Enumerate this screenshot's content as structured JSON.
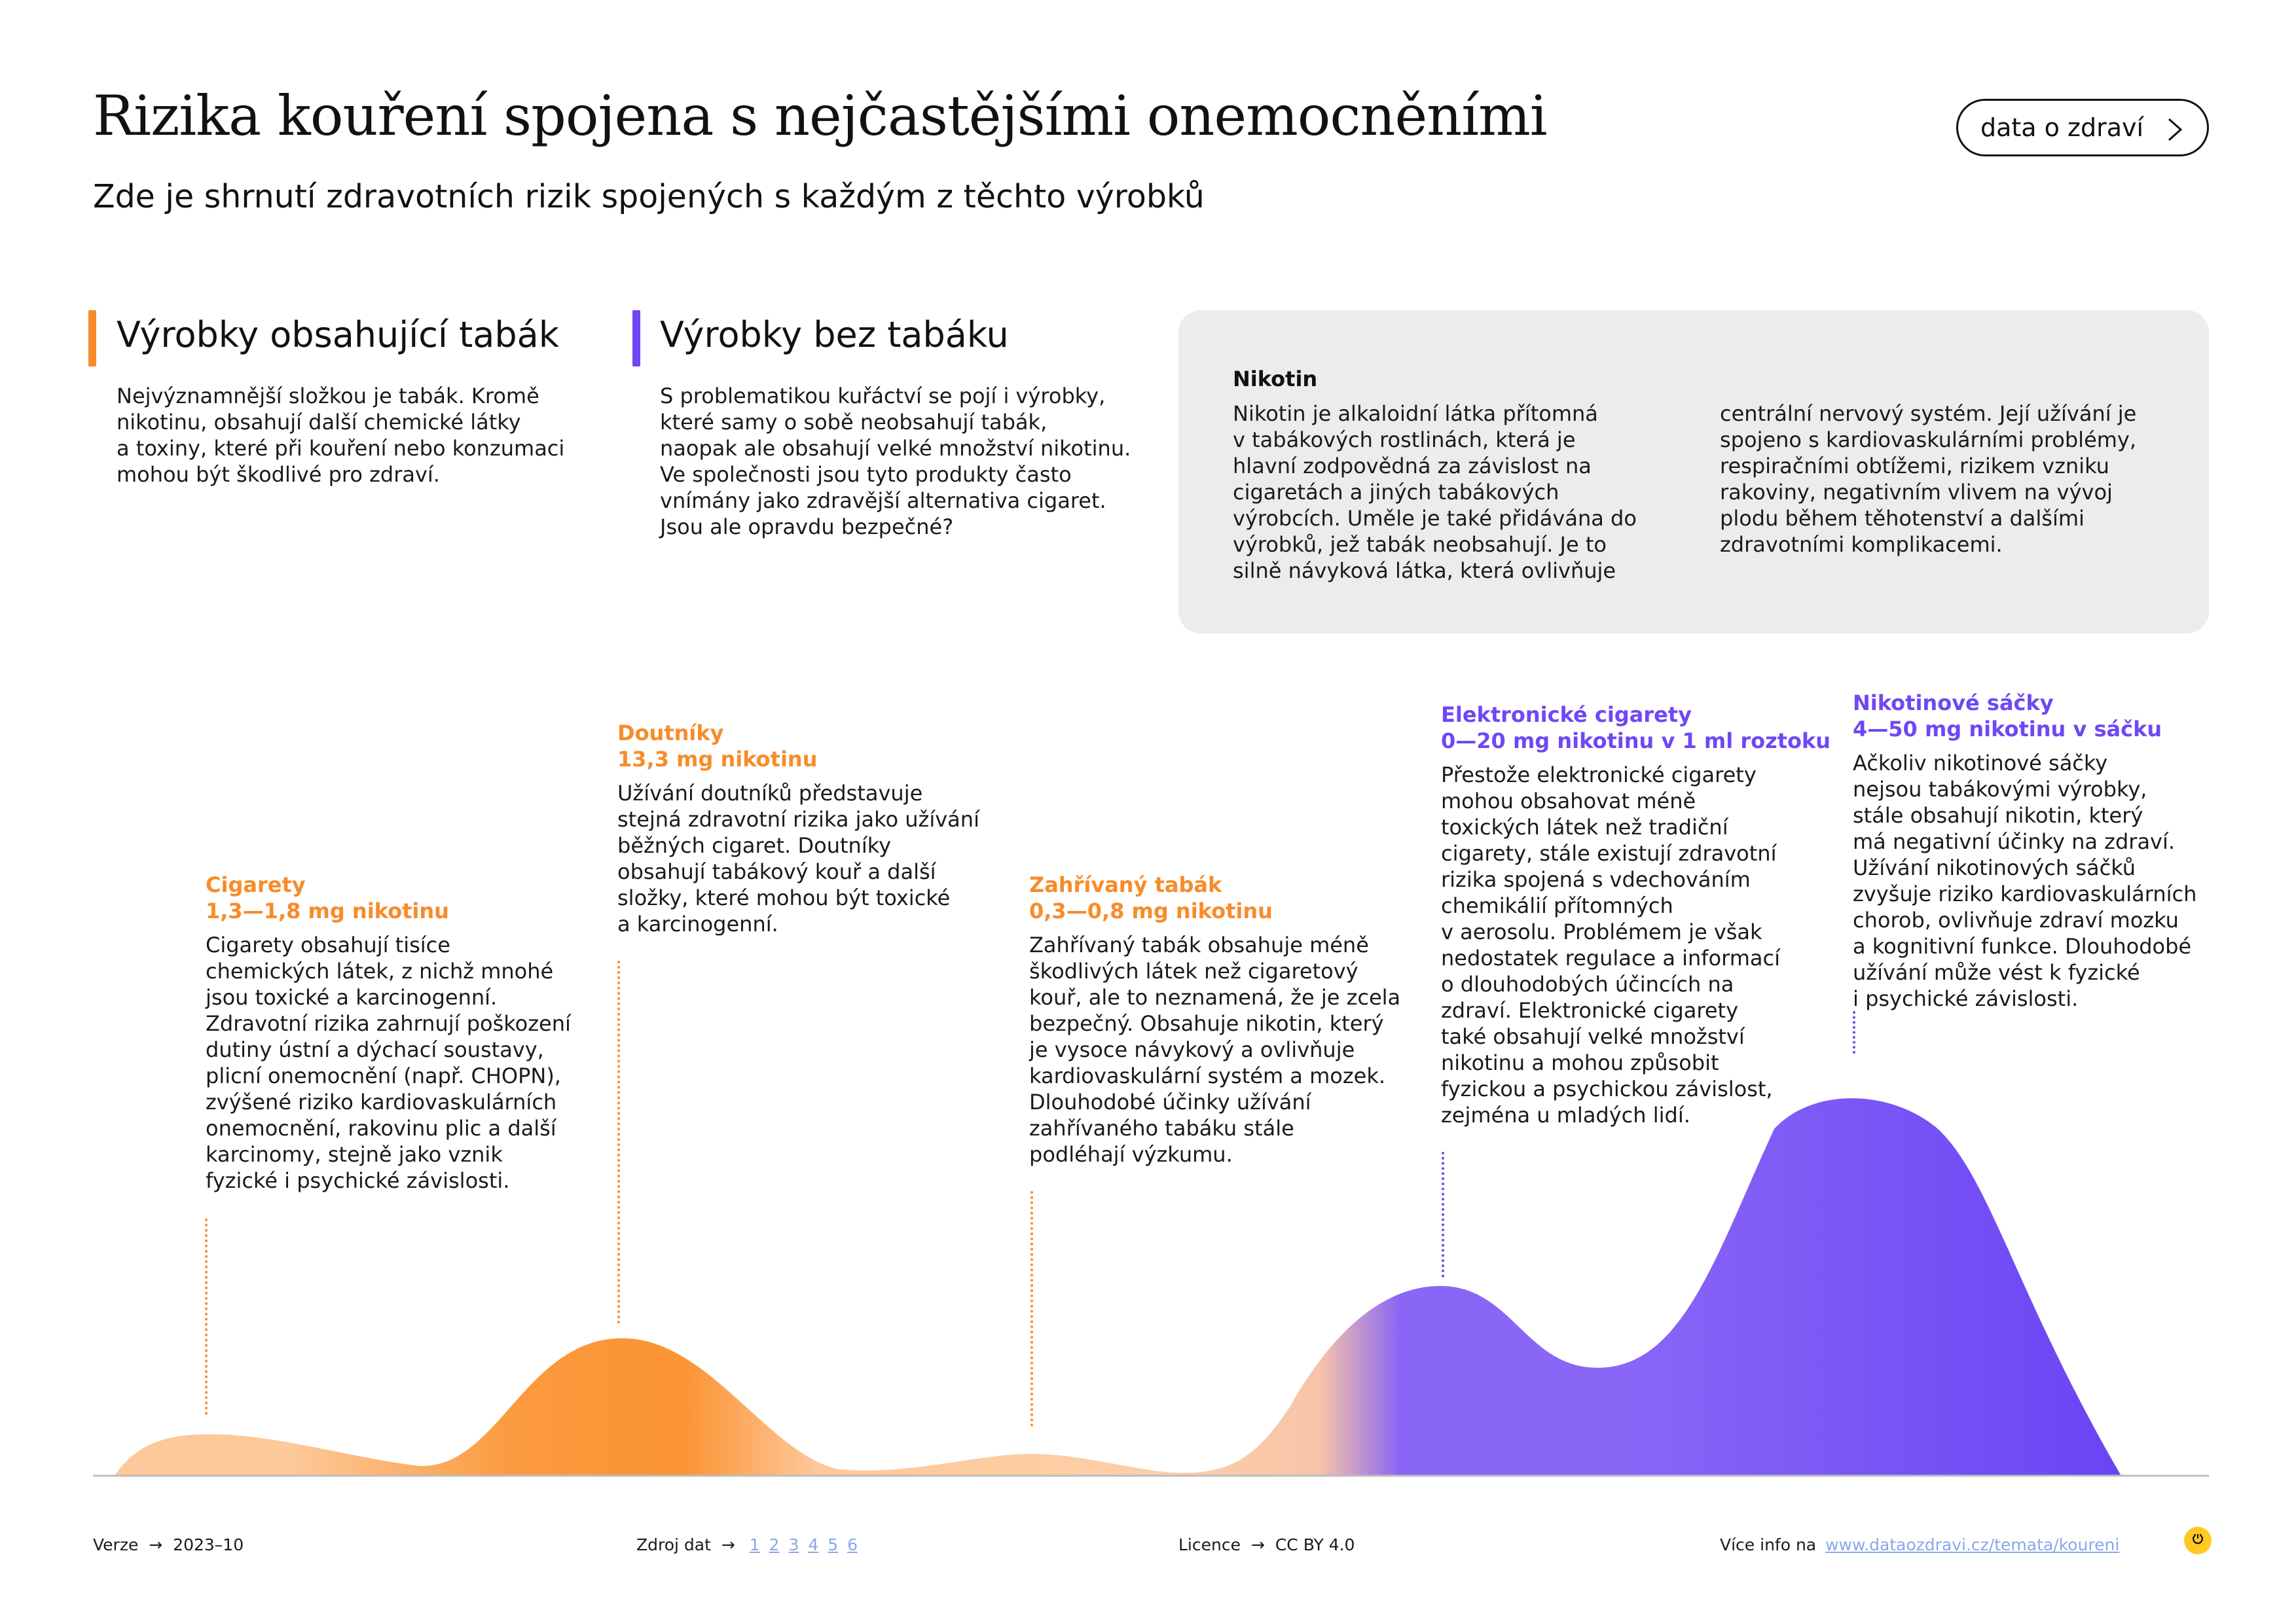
{
  "header": {
    "title": "Rizika kouření spojena s nejčastějšími onemocněními",
    "subtitle": "Zde je shrnutí zdravotních rizik spojených s každým z těchto výrobků",
    "cta_label": "data o zdraví"
  },
  "sections": {
    "tobacco": {
      "title": "Výrobky obsahující tabák",
      "color": "#f78c2a",
      "lines": [
        "Nejvýznamnější složkou je tabák. Kromě",
        "nikotinu, obsahují další chemické látky",
        "a toxiny, které při kouření nebo konzumaci",
        "mohou být škodlivé pro zdraví."
      ]
    },
    "no_tobacco": {
      "title": "Výrobky bez tabáku",
      "color": "#6f48f4",
      "lines": [
        "S problematikou kuřáctví se pojí i výrobky,",
        "které samy o sobě neobsahují tabák,",
        "naopak ale obsahují velké množství nikotinu.",
        "Ve společnosti jsou tyto produkty často",
        "vnímány jako zdravější alternativa cigaret.",
        "Jsou ale opravdu bezpečné?"
      ]
    },
    "nicotine": {
      "title": "Nikotin",
      "col1": [
        "Nikotin je alkaloidní látka přítomná",
        "v tabákových rostlinách, která je",
        "hlavní zodpovědná za závislost na",
        "cigaretách a jiných tabákových",
        "výrobcích. Uměle je také přidávána do",
        "výrobků, jež tabák neobsahují.  Je to",
        "silně návyková látka, která ovlivňuje"
      ],
      "col2": [
        "centrální nervový systém. Její užívání je",
        "spojeno s kardiovaskulárními problémy,",
        "respiračními obtížemi, rizikem vzniku",
        "rakoviny, negativním vlivem na vývoj",
        "plodu během těhotenství a dalšími",
        "zdravotními komplikacemi."
      ]
    }
  },
  "products": [
    {
      "name": "Cigarety",
      "nicotine": "1,3—1,8 mg nikotinu",
      "group": "tabák",
      "lines": [
        "Cigarety obsahují tisíce",
        "chemických látek, z nichž mnohé",
        "jsou toxické a karcinogenní.",
        "Zdravotní rizika zahrnují poškození",
        "dutiny ústní a dýchací soustavy,",
        "plicní onemocnění (např. CHOPN),",
        "zvýšené riziko kardiovaskulárních",
        "onemocnění, rakovinu plic a další",
        "karcinomy, stejně jako vznik",
        "fyzické i psychické závislosti."
      ]
    },
    {
      "name": "Doutníky",
      "nicotine": "13,3 mg nikotinu",
      "group": "tabák",
      "lines": [
        "Užívání doutníků představuje",
        "stejná zdravotní rizika jako užívání",
        "běžných cigaret. Doutníky",
        "obsahují tabákový kouř a další",
        "složky, které mohou být toxické",
        "a karcinogenní."
      ]
    },
    {
      "name": "Zahřívaný tabák",
      "nicotine": "0,3—0,8 mg nikotinu",
      "group": "tabák",
      "lines": [
        "Zahřívaný tabák obsahuje méně",
        "škodlivých látek než cigaretový",
        "kouř, ale to neznamená, že je zcela",
        "bezpečný. Obsahuje nikotin, který",
        "je vysoce návykový a ovlivňuje",
        "kardiovaskulární systém a mozek.",
        "Dlouhodobé účinky užívání",
        "zahřívaného tabáku stále",
        "podléhají výzkumu."
      ]
    },
    {
      "name": "Elektronické cigarety",
      "nicotine": "0—20 mg nikotinu v 1 ml roztoku",
      "group": "bez tabáku",
      "lines": [
        "Přestože elektronické cigarety",
        "mohou obsahovat méně",
        "toxických látek než tradiční",
        "cigarety, stále existují zdravotní",
        "rizika spojená s vdechováním",
        "chemikálií přítomných",
        "v aerosolu. Problémem je však",
        "nedostatek regulace a informací",
        "o dlouhodobých účincích na",
        "zdraví. Elektronické cigarety",
        "také obsahují velké množství",
        "nikotinu a mohou způsobit",
        "fyzickou a psychickou závislost,",
        "zejména u mladých lidí."
      ]
    },
    {
      "name": "Nikotinové sáčky",
      "nicotine": "4—50 mg nikotinu v sáčku",
      "group": "bez tabáku",
      "lines": [
        "Ačkoliv nikotinové sáčky",
        "nejsou tabákovými výrobky,",
        "stále obsahují nikotin, který",
        "má negativní účinky na zdraví.",
        "Užívání nikotinových sáčků",
        "zvyšuje riziko kardiovaskulárních",
        "chorob, ovlivňuje zdraví mozku",
        "a kognitivní funkce. Dlouhodobé",
        "užívání může vést k fyzické",
        "i psychické závislosti."
      ]
    }
  ],
  "colors": {
    "tobacco": "#f78c2a",
    "tobacco_light": "#fdc89a",
    "no_tobacco": "#6f48f4",
    "no_tobacco_light": "#8f6cf6"
  },
  "footer": {
    "version_label": "Verze",
    "version_value": "2023–10",
    "source_label": "Zdroj dat",
    "sources": [
      "1",
      "2",
      "3",
      "4",
      "5",
      "6"
    ],
    "license_label": "Licence",
    "license_value": "CC BY 4.0",
    "more_label": "Více info na",
    "more_link": "www.dataozdravi.cz/temata/koureni",
    "arrow": "→"
  },
  "icons": {
    "cta": "chevron-right-icon",
    "badge": "logo-badge-icon"
  }
}
